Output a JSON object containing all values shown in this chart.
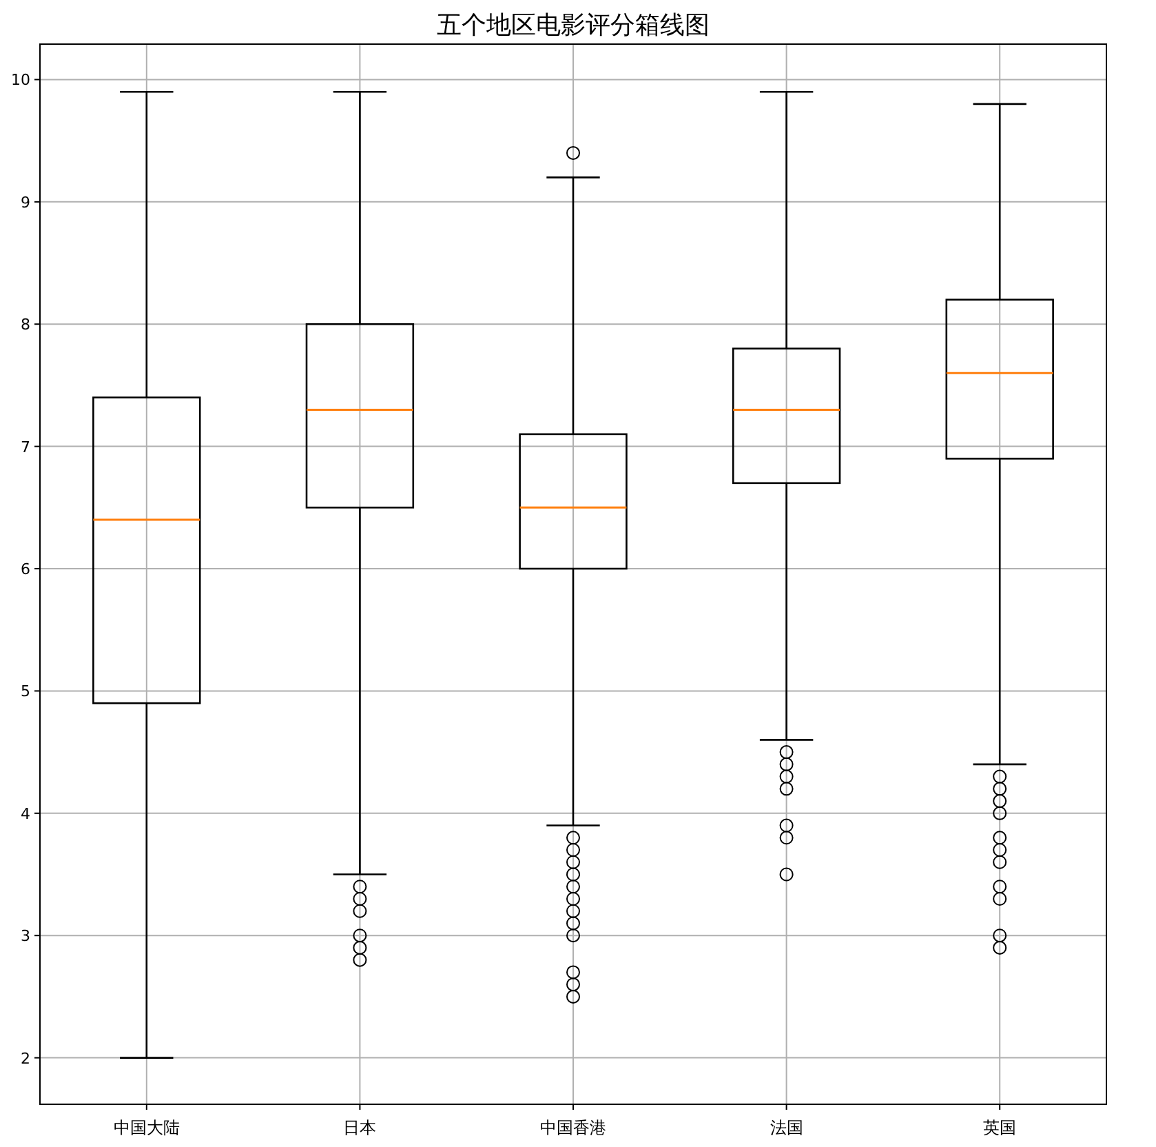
{
  "chart_data": {
    "type": "box",
    "title": "五个地区电影评分箱线图",
    "categories": [
      "中国大陆",
      "日本",
      "中国香港",
      "法国",
      "英国"
    ],
    "boxes": [
      {
        "low": 2.0,
        "q1": 4.9,
        "median": 6.4,
        "q3": 7.4,
        "high": 9.9
      },
      {
        "low": 3.5,
        "q1": 6.5,
        "median": 7.3,
        "q3": 8.0,
        "high": 9.9,
        "outliers": [
          3.4,
          3.3,
          3.2,
          3.0,
          2.9,
          2.8
        ]
      },
      {
        "low": 3.9,
        "q1": 6.0,
        "median": 6.5,
        "q3": 7.1,
        "high": 9.2,
        "outliers": [
          9.4,
          3.8,
          3.7,
          3.6,
          3.5,
          3.4,
          3.3,
          3.2,
          3.1,
          3.0,
          2.7,
          2.6,
          2.5
        ]
      },
      {
        "low": 4.6,
        "q1": 6.7,
        "median": 7.3,
        "q3": 7.8,
        "high": 9.9,
        "outliers": [
          4.5,
          4.4,
          4.3,
          4.2,
          3.9,
          3.8,
          3.5
        ]
      },
      {
        "low": 4.4,
        "q1": 6.9,
        "median": 7.6,
        "q3": 8.2,
        "high": 9.8,
        "outliers": [
          4.3,
          4.2,
          4.1,
          4.0,
          3.8,
          3.7,
          3.6,
          3.4,
          3.3,
          3.0,
          2.9
        ]
      }
    ],
    "color": "#000000",
    "ylim": [
      1.62,
      10.29
    ],
    "yticks": [
      2,
      3,
      4,
      5,
      6,
      7,
      8,
      9,
      10
    ],
    "grid": true
  }
}
